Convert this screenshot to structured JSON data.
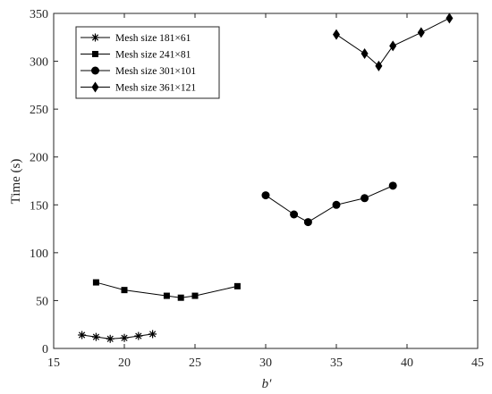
{
  "chart_data": {
    "type": "line",
    "title": "",
    "xlabel": "b′",
    "ylabel": "Time (s)",
    "xlim": [
      15,
      45
    ],
    "ylim": [
      0,
      350
    ],
    "xticks": [
      15,
      20,
      25,
      30,
      35,
      40,
      45
    ],
    "yticks": [
      0,
      50,
      100,
      150,
      200,
      250,
      300,
      350
    ],
    "grid": false,
    "legend_position": "top-left",
    "line_color": "#000000",
    "series": [
      {
        "name": "Mesh size 181×61",
        "marker": "asterisk",
        "x": [
          17,
          18,
          19,
          20,
          21,
          22
        ],
        "y": [
          14,
          12,
          10,
          11,
          13,
          15
        ]
      },
      {
        "name": "Mesh size 241×81",
        "marker": "square",
        "x": [
          18,
          20,
          23,
          24,
          25,
          28
        ],
        "y": [
          69,
          61,
          55,
          53,
          55,
          65
        ]
      },
      {
        "name": "Mesh size 301×101",
        "marker": "circle",
        "x": [
          30,
          32,
          33,
          35,
          37,
          39
        ],
        "y": [
          160,
          140,
          132,
          150,
          157,
          170
        ]
      },
      {
        "name": "Mesh size 361×121",
        "marker": "diamond",
        "x": [
          35,
          37,
          38,
          39,
          41,
          43
        ],
        "y": [
          328,
          308,
          295,
          316,
          330,
          345
        ]
      }
    ]
  }
}
